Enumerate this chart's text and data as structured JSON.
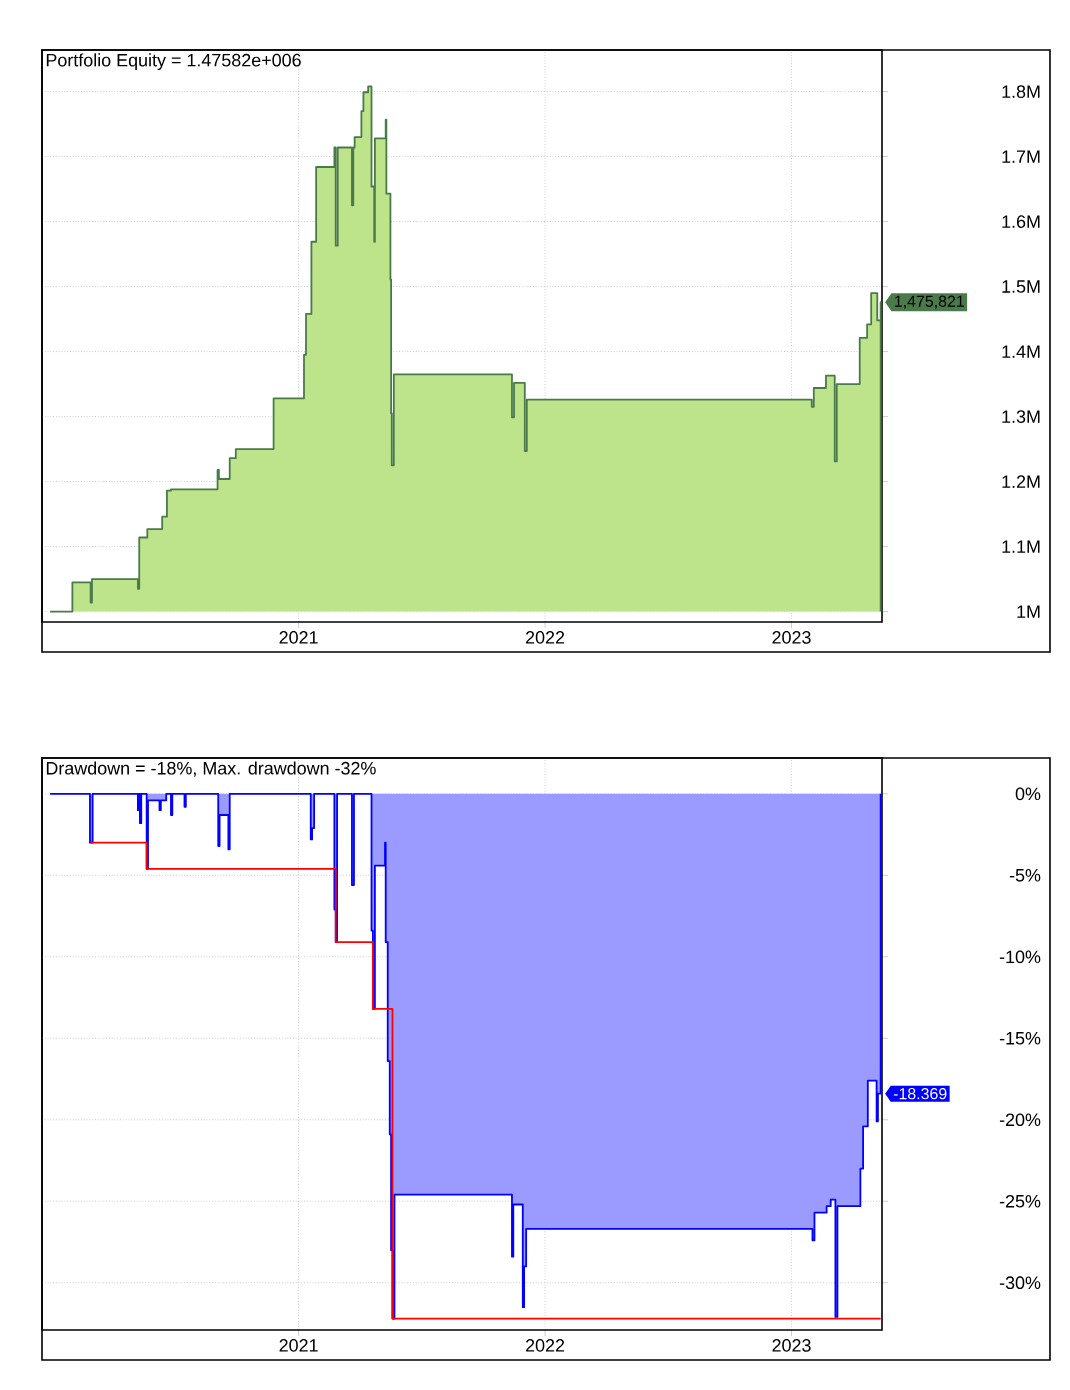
{
  "chart_data": [
    {
      "type": "area",
      "title": "Portfolio Equity = 1.47582e+006",
      "grid": true,
      "xlim": [
        "2019-12-18",
        "2023-05-15"
      ],
      "ylim": [
        0.984,
        1.864
      ],
      "xticks": [
        {
          "value": "2021-01-01",
          "label": "2021"
        },
        {
          "value": "2022-01-01",
          "label": "2022"
        },
        {
          "value": "2023-01-01",
          "label": "2023"
        }
      ],
      "yticks": [
        {
          "value": 1.0,
          "label": "1M"
        },
        {
          "value": 1.1,
          "label": "1.1M"
        },
        {
          "value": 1.2,
          "label": "1.2M"
        },
        {
          "value": 1.3,
          "label": "1.3M"
        },
        {
          "value": 1.4,
          "label": "1.4M"
        },
        {
          "value": 1.5,
          "label": "1.5M"
        },
        {
          "value": 1.6,
          "label": "1.6M"
        },
        {
          "value": 1.7,
          "label": "1.7M"
        },
        {
          "value": 1.8,
          "label": "1.8M"
        }
      ],
      "annotations": [
        {
          "text": "1,475,821",
          "x": "2023-05-13",
          "y": 1.476
        }
      ],
      "series": [
        {
          "color": "#4a7a4a",
          "x": [
            "2019-12-30",
            "2020-02-01",
            "2020-02-28",
            "2020-03-01",
            "2020-05-08",
            "2020-05-10",
            "2020-05-22",
            "2020-06-13",
            "2020-06-20",
            "2020-06-26",
            "2020-09-03",
            "2020-09-05",
            "2020-09-21",
            "2020-09-30",
            "2020-11-25",
            "2021-01-09",
            "2021-01-12",
            "2021-01-20",
            "2021-01-27",
            "2021-02-23",
            "2021-02-25",
            "2021-02-28",
            "2021-03-21",
            "2021-03-23",
            "2021-03-25",
            "2021-04-04",
            "2021-04-07",
            "2021-04-14",
            "2021-04-19",
            "2021-04-23",
            "2021-04-24",
            "2021-05-10",
            "2021-05-11",
            "2021-05-17",
            "2021-05-18",
            "2021-05-19",
            "2021-05-22",
            "2021-11-13",
            "2021-11-16",
            "2021-12-02",
            "2021-12-05",
            "2023-01-31",
            "2023-02-03",
            "2023-02-21",
            "2023-03-06",
            "2023-03-09",
            "2023-04-12",
            "2023-04-23",
            "2023-04-29",
            "2023-05-08",
            "2023-05-13"
          ],
          "values": [
            1.0,
            1.045,
            1.014,
            1.05,
            1.035,
            1.114,
            1.127,
            1.146,
            1.186,
            1.188,
            1.218,
            1.204,
            1.236,
            1.25,
            1.328,
            1.395,
            1.458,
            1.569,
            1.684,
            1.714,
            1.563,
            1.714,
            1.625,
            1.714,
            1.73,
            1.77,
            1.799,
            1.808,
            1.654,
            1.569,
            1.728,
            1.757,
            1.643,
            1.511,
            1.305,
            1.225,
            1.365,
            1.299,
            1.352,
            1.247,
            1.326,
            1.315,
            1.344,
            1.363,
            1.231,
            1.35,
            1.421,
            1.442,
            1.49,
            1.448,
            1.476
          ]
        }
      ]
    },
    {
      "type": "area",
      "title": "Drawdown = -18%, Max. drawdown -32%",
      "grid": true,
      "xlim": [
        "2019-12-18",
        "2023-05-15"
      ],
      "ylim": [
        -32.9,
        2.2
      ],
      "xticks": [
        {
          "value": "2021-01-01",
          "label": "2021"
        },
        {
          "value": "2022-01-01",
          "label": "2022"
        },
        {
          "value": "2023-01-01",
          "label": "2023"
        }
      ],
      "yticks": [
        {
          "value": 0,
          "label": "0%"
        },
        {
          "value": -5,
          "label": "-5%"
        },
        {
          "value": -10,
          "label": "-10%"
        },
        {
          "value": -15,
          "label": "-15%"
        },
        {
          "value": -20,
          "label": "-20%"
        },
        {
          "value": -25,
          "label": "-25%"
        },
        {
          "value": -30,
          "label": "-30%"
        }
      ],
      "annotations": [
        {
          "text": "-18.369",
          "x": "2023-05-13",
          "y": -18.4
        }
      ],
      "series": [
        {
          "color": "#0000ff",
          "x": [
            "2019-12-30",
            "2020-02-27",
            "2020-03-02",
            "2020-05-08",
            "2020-05-10",
            "2020-05-11",
            "2020-05-13",
            "2020-05-21",
            "2020-05-23",
            "2020-06-09",
            "2020-06-11",
            "2020-06-19",
            "2020-06-26",
            "2020-06-28",
            "2020-07-16",
            "2020-07-18",
            "2020-09-04",
            "2020-09-06",
            "2020-09-19",
            "2020-09-21",
            "2021-01-19",
            "2021-01-21",
            "2021-01-24",
            "2021-02-23",
            "2021-02-25",
            "2021-02-27",
            "2021-03-21",
            "2021-03-24",
            "2021-04-19",
            "2021-04-21",
            "2021-04-24",
            "2021-05-09",
            "2021-05-10",
            "2021-05-13",
            "2021-05-16",
            "2021-05-18",
            "2021-05-20",
            "2021-05-23",
            "2021-11-13",
            "2021-11-15",
            "2021-11-29",
            "2021-12-01",
            "2021-12-04",
            "2023-02-01",
            "2023-02-04",
            "2023-02-22",
            "2023-02-28",
            "2023-03-07",
            "2023-03-10",
            "2023-04-13",
            "2023-04-17",
            "2023-04-24",
            "2023-05-07",
            "2023-05-09",
            "2023-05-13"
          ],
          "values": [
            0,
            -3.0,
            0,
            -1.0,
            0,
            -1.8,
            0,
            -4.6,
            -0.4,
            -1.0,
            -0.4,
            0,
            -1.3,
            0,
            -0.8,
            0,
            -3.2,
            -1.3,
            -3.4,
            0,
            -2.8,
            -2.1,
            0,
            -7.1,
            -9.1,
            0,
            -5.6,
            0,
            -8.4,
            -13.2,
            -4.4,
            -3.0,
            -9.1,
            -16.4,
            -20.9,
            -28.0,
            -32.2,
            -24.6,
            -28.4,
            -25.2,
            -31.5,
            -29.0,
            -26.7,
            -27.4,
            -25.7,
            -25.3,
            -24.9,
            -32.1,
            -25.3,
            -23.0,
            -20.4,
            -17.6,
            -20.1,
            -18.4,
            -18.4
          ]
        },
        {
          "type": "step",
          "color": "#ff0000",
          "x": [
            "2020-02-28",
            "2020-05-21",
            "2021-02-25",
            "2021-04-21",
            "2021-05-20",
            "2023-05-13"
          ],
          "values": [
            -3.0,
            -4.6,
            -9.1,
            -13.2,
            -32.2,
            -32.2
          ]
        }
      ]
    }
  ]
}
